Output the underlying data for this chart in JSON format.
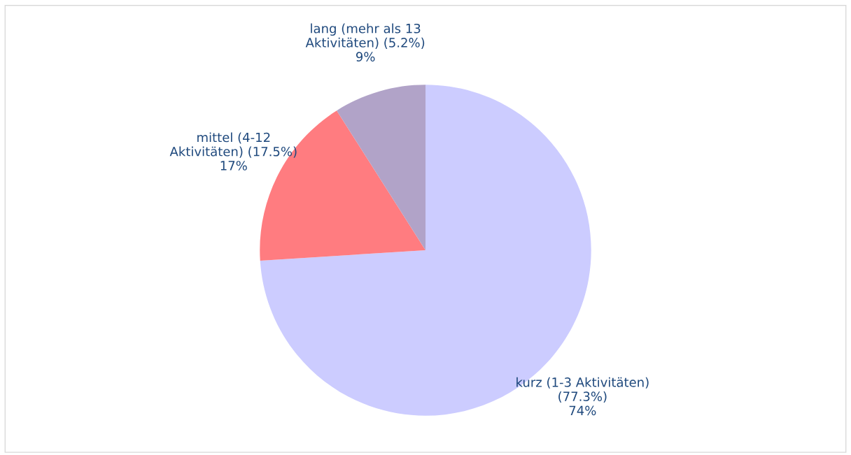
{
  "chart_data": {
    "type": "pie",
    "categories": [
      "kurz (1-3 Aktivitäten)\n(77.3%)",
      "mittel (4-12\nAktivitäten) (17.5%)",
      "lang (mehr als 13\nAktivitäten) (5.2%)"
    ],
    "values": [
      74,
      17,
      9
    ],
    "value_labels": [
      "74%",
      "17%",
      "9%"
    ],
    "colors": [
      "#ccccff",
      "#ff7c80",
      "#b1a3c8"
    ],
    "legend": false
  }
}
